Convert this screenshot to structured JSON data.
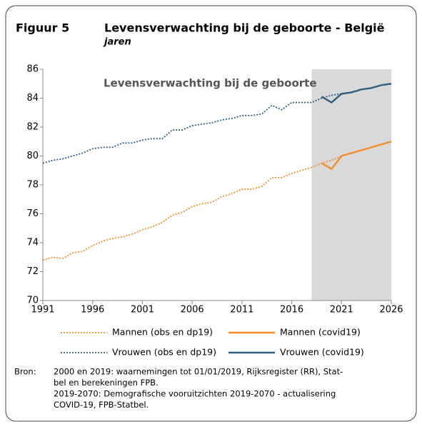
{
  "chart_data": {
    "type": "line",
    "figure_label": "Figuur 5",
    "title": "Levensverwachting bij de geboorte - België",
    "subtitle": "jaren",
    "plot_title": "Levensverwachting bij de geboorte",
    "x": [
      1991,
      1992,
      1993,
      1994,
      1995,
      1996,
      1997,
      1998,
      1999,
      2000,
      2001,
      2002,
      2003,
      2004,
      2005,
      2006,
      2007,
      2008,
      2009,
      2010,
      2011,
      2012,
      2013,
      2014,
      2015,
      2016,
      2017,
      2018,
      2019,
      2020,
      2021,
      2022,
      2023,
      2024,
      2025,
      2026
    ],
    "xlim": [
      1991,
      2026
    ],
    "xticks": [
      1991,
      1996,
      2001,
      2006,
      2011,
      2016,
      2021,
      2026
    ],
    "ylim": [
      70,
      86
    ],
    "yticks": [
      70,
      72,
      74,
      76,
      78,
      80,
      82,
      84,
      86
    ],
    "shade": [
      2018,
      2026
    ],
    "shade_color": "#d9d9d9",
    "series": [
      {
        "name": "Mannen (obs en dp19)",
        "color": "#f28e2b",
        "style": "dotted",
        "values": [
          72.8,
          73.0,
          72.9,
          73.3,
          73.4,
          73.8,
          74.1,
          74.3,
          74.4,
          74.6,
          74.9,
          75.1,
          75.4,
          75.9,
          76.1,
          76.5,
          76.7,
          76.8,
          77.2,
          77.4,
          77.7,
          77.7,
          77.9,
          78.5,
          78.5,
          78.8,
          79.0,
          79.2,
          79.5,
          79.7,
          80.0,
          null,
          null,
          null,
          null,
          null
        ]
      },
      {
        "name": "Mannen (covid19)",
        "color": "#f28e2b",
        "style": "solid",
        "values": [
          null,
          null,
          null,
          null,
          null,
          null,
          null,
          null,
          null,
          null,
          null,
          null,
          null,
          null,
          null,
          null,
          null,
          null,
          null,
          null,
          null,
          null,
          null,
          null,
          null,
          null,
          null,
          null,
          79.5,
          79.1,
          80.0,
          80.2,
          80.4,
          80.6,
          80.8,
          81.0
        ]
      },
      {
        "name": "Vrouwen (obs en dp19)",
        "color": "#2e5f7f",
        "style": "dotted",
        "values": [
          79.5,
          79.7,
          79.8,
          80.0,
          80.2,
          80.5,
          80.6,
          80.6,
          80.9,
          80.9,
          81.1,
          81.2,
          81.2,
          81.8,
          81.8,
          82.1,
          82.2,
          82.3,
          82.5,
          82.6,
          82.8,
          82.8,
          82.9,
          83.5,
          83.2,
          83.7,
          83.7,
          83.7,
          84.0,
          84.2,
          84.3,
          null,
          null,
          null,
          null,
          null
        ]
      },
      {
        "name": "Vrouwen (covid19)",
        "color": "#2e5f7f",
        "style": "solid",
        "values": [
          null,
          null,
          null,
          null,
          null,
          null,
          null,
          null,
          null,
          null,
          null,
          null,
          null,
          null,
          null,
          null,
          null,
          null,
          null,
          null,
          null,
          null,
          null,
          null,
          null,
          null,
          null,
          null,
          84.1,
          83.7,
          84.3,
          84.4,
          84.6,
          84.7,
          84.9,
          85.0
        ]
      }
    ],
    "source_label": "Bron:",
    "source_lines": [
      "2000 en 2019: waarnemingen tot 01/01/2019, Rijksregister (RR), Stat-",
      "bel en berekeningen FPB.",
      "2019-2070: Demografische vooruitzichten 2019-2070 - actualisering",
      "COVID-19, FPB-Statbel."
    ]
  }
}
